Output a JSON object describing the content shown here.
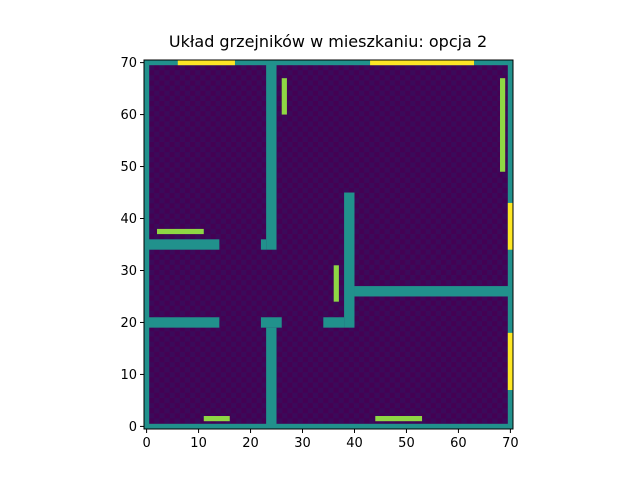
{
  "chart_data": {
    "type": "heatmap",
    "title": "Układ grzejników w mieszkaniu: opcja 2",
    "xlabel": "",
    "ylabel": "",
    "xlim": [
      0,
      71
    ],
    "ylim": [
      0,
      71
    ],
    "grid": false,
    "x_ticks": [
      "0",
      "10",
      "20",
      "30",
      "40",
      "50",
      "60",
      "70"
    ],
    "y_ticks": [
      "0",
      "10",
      "20",
      "30",
      "40",
      "50",
      "60",
      "70"
    ],
    "colors": {
      "floor_a": "#440154",
      "floor_b": "#3b0a5a",
      "wall": "#21918c",
      "radiator": "#8fd744",
      "window": "#fde725"
    },
    "walls": [
      {
        "x0": 0,
        "x1": 71,
        "y0": 0,
        "y1": 1
      },
      {
        "x0": 0,
        "x1": 71,
        "y0": 70,
        "y1": 71
      },
      {
        "x0": 0,
        "x1": 1,
        "y0": 0,
        "y1": 71
      },
      {
        "x0": 70,
        "x1": 71,
        "y0": 0,
        "y1": 71
      },
      {
        "x0": 23.5,
        "x1": 25.5,
        "y0": 34.5,
        "y1": 71
      },
      {
        "x0": 22.5,
        "x1": 23.5,
        "y0": 34.5,
        "y1": 36.5
      },
      {
        "x0": 0,
        "x1": 14.5,
        "y0": 34.5,
        "y1": 36.5
      },
      {
        "x0": 0,
        "x1": 14.5,
        "y0": 19.5,
        "y1": 21.5
      },
      {
        "x0": 22.5,
        "x1": 26.5,
        "y0": 19.5,
        "y1": 21.5
      },
      {
        "x0": 23.5,
        "x1": 25.5,
        "y0": 0,
        "y1": 19.5
      },
      {
        "x0": 38.5,
        "x1": 40.5,
        "y0": 19.5,
        "y1": 45.5
      },
      {
        "x0": 34.5,
        "x1": 38.5,
        "y0": 19.5,
        "y1": 21.5
      },
      {
        "x0": 40.5,
        "x1": 71,
        "y0": 25.5,
        "y1": 27.5
      }
    ],
    "radiators": [
      {
        "x0": 26.5,
        "x1": 27.5,
        "y0": 60.5,
        "y1": 67.5
      },
      {
        "x0": 68.5,
        "x1": 69.5,
        "y0": 49.5,
        "y1": 67.5
      },
      {
        "x0": 2.5,
        "x1": 11.5,
        "y0": 37.5,
        "y1": 38.5
      },
      {
        "x0": 36.5,
        "x1": 37.5,
        "y0": 24.5,
        "y1": 31.5
      },
      {
        "x0": 11.5,
        "x1": 16.5,
        "y0": 1.5,
        "y1": 2.5
      },
      {
        "x0": 44.5,
        "x1": 53.5,
        "y0": 1.5,
        "y1": 2.5
      }
    ],
    "windows": [
      {
        "x0": 6.5,
        "x1": 17.5,
        "y0": 70,
        "y1": 71
      },
      {
        "x0": 43.5,
        "x1": 63.5,
        "y0": 70,
        "y1": 71
      },
      {
        "x0": 70,
        "x1": 71,
        "y0": 34.5,
        "y1": 43.5
      },
      {
        "x0": 70,
        "x1": 71,
        "y0": 7.5,
        "y1": 18.5
      }
    ]
  }
}
